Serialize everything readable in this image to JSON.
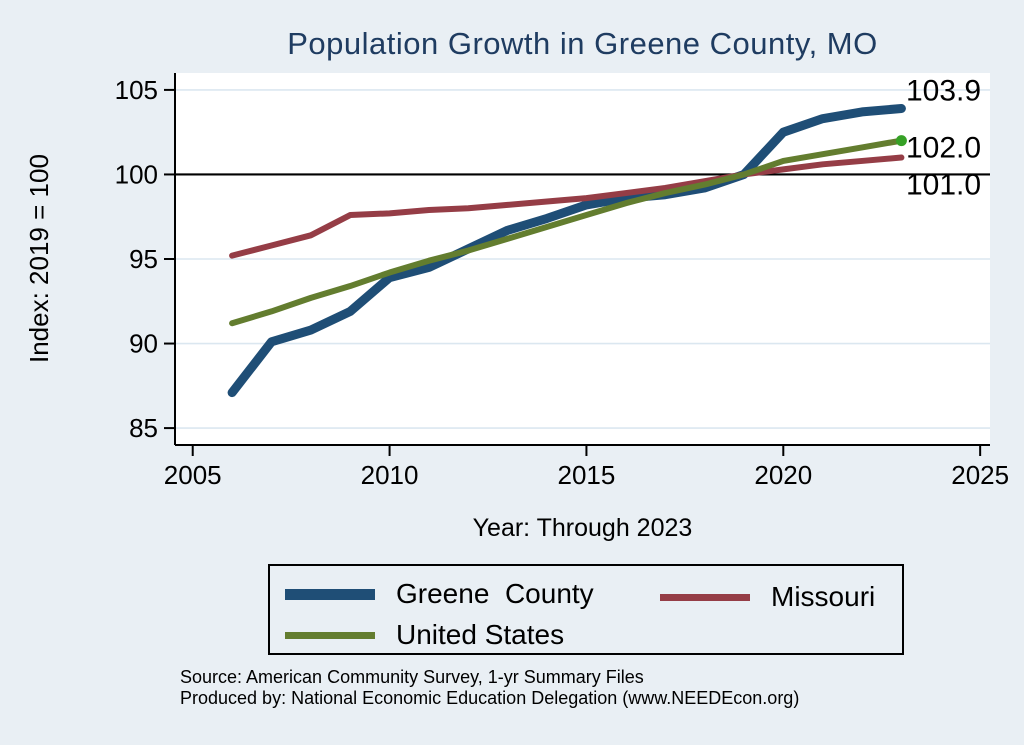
{
  "page": {
    "background_color": "#e9eff4",
    "plot_background_color": "#ffffff",
    "title_color": "#1f3c61",
    "gridline_color": "#dbe7f0",
    "axis_color": "#000000"
  },
  "chart_data": {
    "type": "line",
    "title": "Population Growth in Greene County, MO",
    "xlabel": "Year: Through 2023",
    "ylabel": "Index: 2019 = 100",
    "xticks": [
      2005,
      2010,
      2015,
      2020,
      2025
    ],
    "yticks": [
      85,
      90,
      95,
      100,
      105
    ],
    "xlim": [
      2004.55,
      2025.25
    ],
    "ylim": [
      84,
      106
    ],
    "reference_line_y": 100,
    "grid": true,
    "legend_position": "bottom",
    "x": [
      2006,
      2007,
      2008,
      2009,
      2010,
      2011,
      2012,
      2013,
      2014,
      2015,
      2016,
      2017,
      2018,
      2019,
      2020,
      2021,
      2022,
      2023
    ],
    "series": [
      {
        "name": "Greene  County",
        "color": "#1f4e76",
        "line_width": 9,
        "end_label": "103.9",
        "values": [
          87.1,
          90.1,
          90.8,
          91.9,
          93.9,
          94.5,
          95.6,
          96.7,
          97.4,
          98.2,
          98.6,
          98.8,
          99.2,
          100.0,
          102.5,
          103.3,
          103.7,
          103.9
        ]
      },
      {
        "name": "Missouri",
        "color": "#953d46",
        "line_width": 6,
        "end_label": "101.0",
        "values": [
          95.2,
          95.8,
          96.4,
          97.6,
          97.7,
          97.9,
          98.0,
          98.2,
          98.4,
          98.6,
          98.9,
          99.2,
          99.6,
          100.0,
          100.3,
          100.6,
          100.8,
          101.0
        ]
      },
      {
        "name": "United States",
        "color": "#637d2f",
        "line_width": 6,
        "end_label": "102.0",
        "end_marker_color": "#36a126",
        "values": [
          91.2,
          91.9,
          92.7,
          93.4,
          94.2,
          94.9,
          95.5,
          96.2,
          96.9,
          97.6,
          98.3,
          98.9,
          99.4,
          100.0,
          100.8,
          101.2,
          101.6,
          102.0
        ]
      }
    ]
  },
  "footer": {
    "source_line1": "Source: American Community Survey, 1-yr Summary Files",
    "source_line2": "Produced by: National Economic Education Delegation (www.NEEDEcon.org)"
  }
}
